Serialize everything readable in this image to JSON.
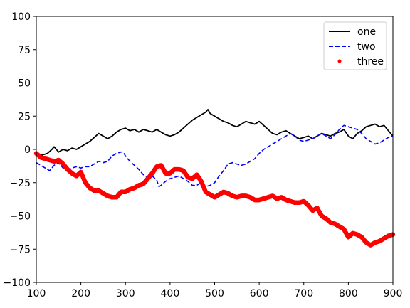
{
  "chart_data": {
    "type": "line",
    "title": "",
    "xlabel": "",
    "ylabel": "",
    "xlim": [
      100,
      900
    ],
    "ylim": [
      -100,
      100
    ],
    "xticks": [
      100,
      200,
      300,
      400,
      500,
      600,
      700,
      800,
      900
    ],
    "yticks": [
      -100,
      -75,
      -50,
      -25,
      0,
      25,
      50,
      75,
      100
    ],
    "xtick_labels": [
      "100",
      "200",
      "300",
      "400",
      "500",
      "600",
      "700",
      "800",
      "900"
    ],
    "ytick_labels": [
      "−100",
      "−75",
      "−50",
      "−25",
      "0",
      "25",
      "50",
      "75",
      "100"
    ],
    "grid": false,
    "legend_position": "top-right",
    "series": [
      {
        "name": "one",
        "style": "solid",
        "marker": "none",
        "color": "#000000",
        "points": [
          [
            100,
            -5
          ],
          [
            115,
            -4
          ],
          [
            125,
            -3
          ],
          [
            135,
            0
          ],
          [
            140,
            2
          ],
          [
            150,
            -2
          ],
          [
            160,
            0
          ],
          [
            170,
            -1
          ],
          [
            180,
            1
          ],
          [
            190,
            0
          ],
          [
            200,
            2
          ],
          [
            210,
            4
          ],
          [
            220,
            6
          ],
          [
            230,
            9
          ],
          [
            240,
            12
          ],
          [
            250,
            10
          ],
          [
            260,
            8
          ],
          [
            270,
            10
          ],
          [
            280,
            13
          ],
          [
            290,
            15
          ],
          [
            300,
            16
          ],
          [
            310,
            14
          ],
          [
            320,
            15
          ],
          [
            330,
            13
          ],
          [
            340,
            15
          ],
          [
            350,
            14
          ],
          [
            360,
            13
          ],
          [
            370,
            15
          ],
          [
            380,
            13
          ],
          [
            390,
            11
          ],
          [
            400,
            10
          ],
          [
            410,
            11
          ],
          [
            420,
            13
          ],
          [
            430,
            16
          ],
          [
            440,
            19
          ],
          [
            450,
            22
          ],
          [
            460,
            24
          ],
          [
            470,
            26
          ],
          [
            480,
            28
          ],
          [
            485,
            30
          ],
          [
            490,
            27
          ],
          [
            500,
            25
          ],
          [
            510,
            23
          ],
          [
            520,
            21
          ],
          [
            530,
            20
          ],
          [
            540,
            18
          ],
          [
            550,
            17
          ],
          [
            560,
            19
          ],
          [
            570,
            21
          ],
          [
            580,
            20
          ],
          [
            590,
            19
          ],
          [
            600,
            21
          ],
          [
            610,
            18
          ],
          [
            620,
            15
          ],
          [
            630,
            12
          ],
          [
            640,
            11
          ],
          [
            650,
            13
          ],
          [
            660,
            14
          ],
          [
            670,
            12
          ],
          [
            680,
            10
          ],
          [
            690,
            8
          ],
          [
            700,
            9
          ],
          [
            710,
            10
          ],
          [
            720,
            8
          ],
          [
            730,
            10
          ],
          [
            740,
            12
          ],
          [
            750,
            11
          ],
          [
            760,
            10
          ],
          [
            770,
            12
          ],
          [
            780,
            13
          ],
          [
            790,
            15
          ],
          [
            800,
            10
          ],
          [
            810,
            8
          ],
          [
            820,
            12
          ],
          [
            830,
            14
          ],
          [
            840,
            17
          ],
          [
            850,
            18
          ],
          [
            860,
            19
          ],
          [
            870,
            17
          ],
          [
            880,
            18
          ],
          [
            890,
            14
          ],
          [
            900,
            10
          ]
        ]
      },
      {
        "name": "two",
        "style": "dashed",
        "marker": "none",
        "color": "#0000ff",
        "points": [
          [
            100,
            -10
          ],
          [
            110,
            -12
          ],
          [
            120,
            -14
          ],
          [
            130,
            -16
          ],
          [
            140,
            -12
          ],
          [
            150,
            -10
          ],
          [
            160,
            -14
          ],
          [
            170,
            -15
          ],
          [
            180,
            -14
          ],
          [
            190,
            -13
          ],
          [
            200,
            -14
          ],
          [
            210,
            -13
          ],
          [
            220,
            -13
          ],
          [
            230,
            -11
          ],
          [
            240,
            -9
          ],
          [
            250,
            -10
          ],
          [
            260,
            -9
          ],
          [
            270,
            -5
          ],
          [
            280,
            -3
          ],
          [
            290,
            -2
          ],
          [
            295,
            -2
          ],
          [
            300,
            -5
          ],
          [
            310,
            -9
          ],
          [
            320,
            -12
          ],
          [
            330,
            -15
          ],
          [
            340,
            -19
          ],
          [
            350,
            -21
          ],
          [
            360,
            -20
          ],
          [
            370,
            -23
          ],
          [
            375,
            -28
          ],
          [
            380,
            -27
          ],
          [
            390,
            -24
          ],
          [
            400,
            -22
          ],
          [
            410,
            -21
          ],
          [
            420,
            -20
          ],
          [
            430,
            -22
          ],
          [
            440,
            -24
          ],
          [
            450,
            -27
          ],
          [
            460,
            -27
          ],
          [
            470,
            -25
          ],
          [
            480,
            -28
          ],
          [
            490,
            -27
          ],
          [
            500,
            -25
          ],
          [
            510,
            -20
          ],
          [
            520,
            -16
          ],
          [
            530,
            -11
          ],
          [
            540,
            -10
          ],
          [
            550,
            -11
          ],
          [
            560,
            -12
          ],
          [
            570,
            -11
          ],
          [
            580,
            -9
          ],
          [
            590,
            -7
          ],
          [
            600,
            -3
          ],
          [
            610,
            0
          ],
          [
            620,
            2
          ],
          [
            630,
            4
          ],
          [
            640,
            6
          ],
          [
            650,
            8
          ],
          [
            660,
            10
          ],
          [
            670,
            12
          ],
          [
            680,
            10
          ],
          [
            690,
            7
          ],
          [
            700,
            6
          ],
          [
            710,
            7
          ],
          [
            720,
            8
          ],
          [
            730,
            10
          ],
          [
            740,
            12
          ],
          [
            750,
            10
          ],
          [
            760,
            8
          ],
          [
            770,
            11
          ],
          [
            780,
            15
          ],
          [
            790,
            18
          ],
          [
            800,
            17
          ],
          [
            810,
            16
          ],
          [
            820,
            15
          ],
          [
            830,
            12
          ],
          [
            840,
            8
          ],
          [
            850,
            6
          ],
          [
            860,
            4
          ],
          [
            870,
            5
          ],
          [
            880,
            7
          ],
          [
            890,
            9
          ],
          [
            900,
            10
          ]
        ]
      },
      {
        "name": "three",
        "style": "none",
        "marker": "dot",
        "color": "#ff0000",
        "points": [
          [
            100,
            -3
          ],
          [
            110,
            -6
          ],
          [
            120,
            -7
          ],
          [
            130,
            -8
          ],
          [
            140,
            -9
          ],
          [
            150,
            -8
          ],
          [
            160,
            -11
          ],
          [
            170,
            -15
          ],
          [
            180,
            -18
          ],
          [
            190,
            -20
          ],
          [
            200,
            -17
          ],
          [
            210,
            -25
          ],
          [
            220,
            -29
          ],
          [
            230,
            -31
          ],
          [
            240,
            -31
          ],
          [
            250,
            -33
          ],
          [
            260,
            -35
          ],
          [
            270,
            -36
          ],
          [
            280,
            -36
          ],
          [
            290,
            -32
          ],
          [
            300,
            -32
          ],
          [
            310,
            -30
          ],
          [
            320,
            -29
          ],
          [
            330,
            -27
          ],
          [
            340,
            -26
          ],
          [
            350,
            -22
          ],
          [
            360,
            -18
          ],
          [
            370,
            -13
          ],
          [
            380,
            -12
          ],
          [
            390,
            -18
          ],
          [
            400,
            -18
          ],
          [
            410,
            -15
          ],
          [
            420,
            -15
          ],
          [
            430,
            -16
          ],
          [
            440,
            -21
          ],
          [
            450,
            -22
          ],
          [
            460,
            -19
          ],
          [
            470,
            -24
          ],
          [
            480,
            -32
          ],
          [
            490,
            -34
          ],
          [
            500,
            -36
          ],
          [
            510,
            -34
          ],
          [
            520,
            -32
          ],
          [
            530,
            -33
          ],
          [
            540,
            -35
          ],
          [
            550,
            -36
          ],
          [
            560,
            -35
          ],
          [
            570,
            -35
          ],
          [
            580,
            -36
          ],
          [
            590,
            -38
          ],
          [
            600,
            -38
          ],
          [
            610,
            -37
          ],
          [
            620,
            -36
          ],
          [
            630,
            -35
          ],
          [
            640,
            -37
          ],
          [
            650,
            -36
          ],
          [
            660,
            -38
          ],
          [
            670,
            -39
          ],
          [
            680,
            -40
          ],
          [
            690,
            -40
          ],
          [
            700,
            -39
          ],
          [
            710,
            -42
          ],
          [
            720,
            -46
          ],
          [
            730,
            -44
          ],
          [
            740,
            -50
          ],
          [
            750,
            -52
          ],
          [
            760,
            -55
          ],
          [
            770,
            -56
          ],
          [
            780,
            -58
          ],
          [
            790,
            -60
          ],
          [
            800,
            -66
          ],
          [
            810,
            -63
          ],
          [
            820,
            -64
          ],
          [
            830,
            -66
          ],
          [
            840,
            -70
          ],
          [
            850,
            -72
          ],
          [
            860,
            -70
          ],
          [
            870,
            -69
          ],
          [
            880,
            -67
          ],
          [
            890,
            -65
          ],
          [
            900,
            -64
          ]
        ]
      }
    ]
  }
}
